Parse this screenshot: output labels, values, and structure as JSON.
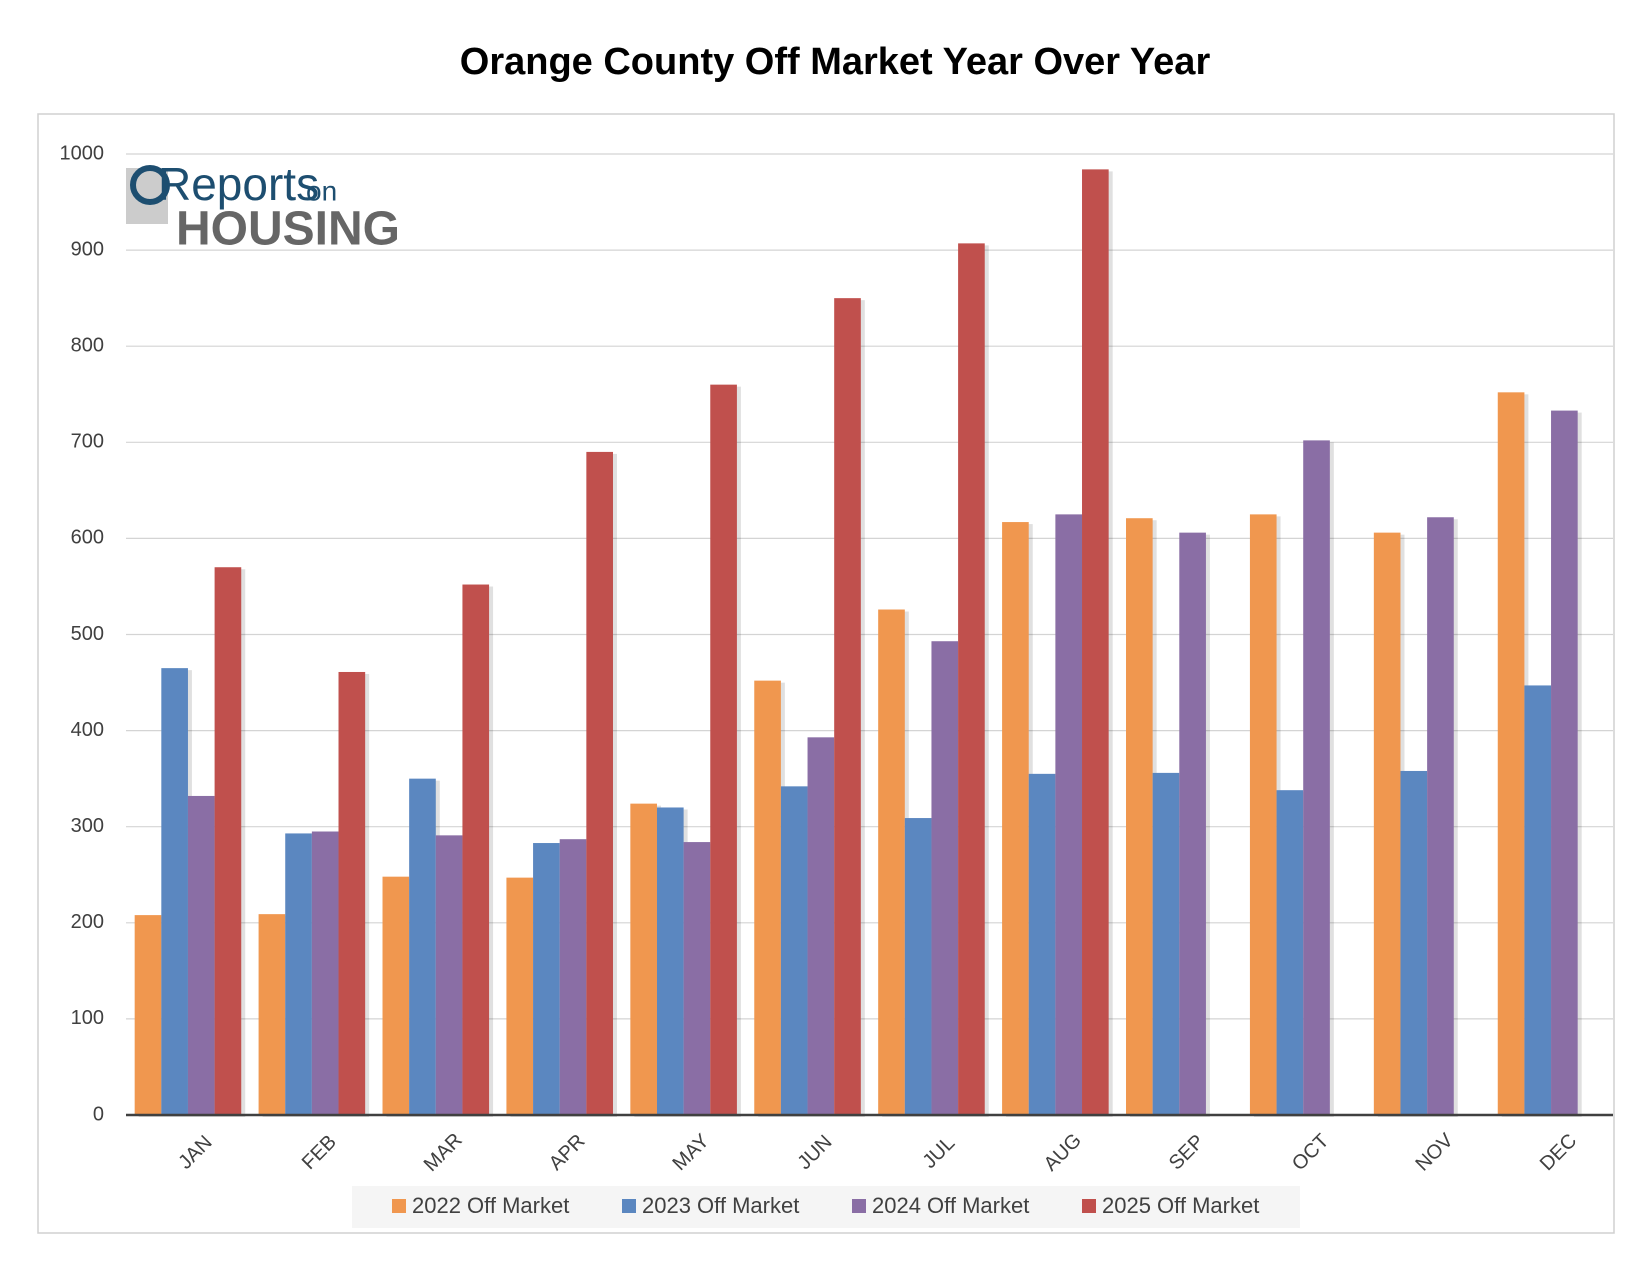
{
  "chart_data": {
    "type": "bar",
    "title": "Orange County Off Market Year Over Year",
    "logo": {
      "line1": "Reports",
      "line1b": "on",
      "line2": "HOUSING"
    },
    "categories": [
      "JAN",
      "FEB",
      "MAR",
      "APR",
      "MAY",
      "JUN",
      "JUL",
      "AUG",
      "SEP",
      "OCT",
      "NOV",
      "DEC"
    ],
    "series": [
      {
        "name": "2022 Off Market",
        "color": "#f0974f",
        "values": [
          208,
          209,
          248,
          247,
          324,
          452,
          526,
          617,
          621,
          625,
          606,
          752
        ]
      },
      {
        "name": "2023 Off Market",
        "color": "#5b87c0",
        "values": [
          465,
          293,
          350,
          283,
          320,
          342,
          309,
          355,
          356,
          338,
          358,
          447
        ]
      },
      {
        "name": "2024 Off Market",
        "color": "#8a6ea5",
        "values": [
          332,
          295,
          291,
          287,
          284,
          393,
          493,
          625,
          606,
          702,
          622,
          733
        ]
      },
      {
        "name": "2025 Off Market",
        "color": "#c0504d",
        "values": [
          570,
          461,
          552,
          690,
          760,
          850,
          907,
          984,
          null,
          null,
          null,
          null
        ]
      }
    ],
    "ylim": [
      0,
      1000
    ],
    "yticks": [
      0,
      100,
      200,
      300,
      400,
      500,
      600,
      700,
      800,
      900,
      1000
    ],
    "grid": true,
    "legend": "bottom"
  }
}
